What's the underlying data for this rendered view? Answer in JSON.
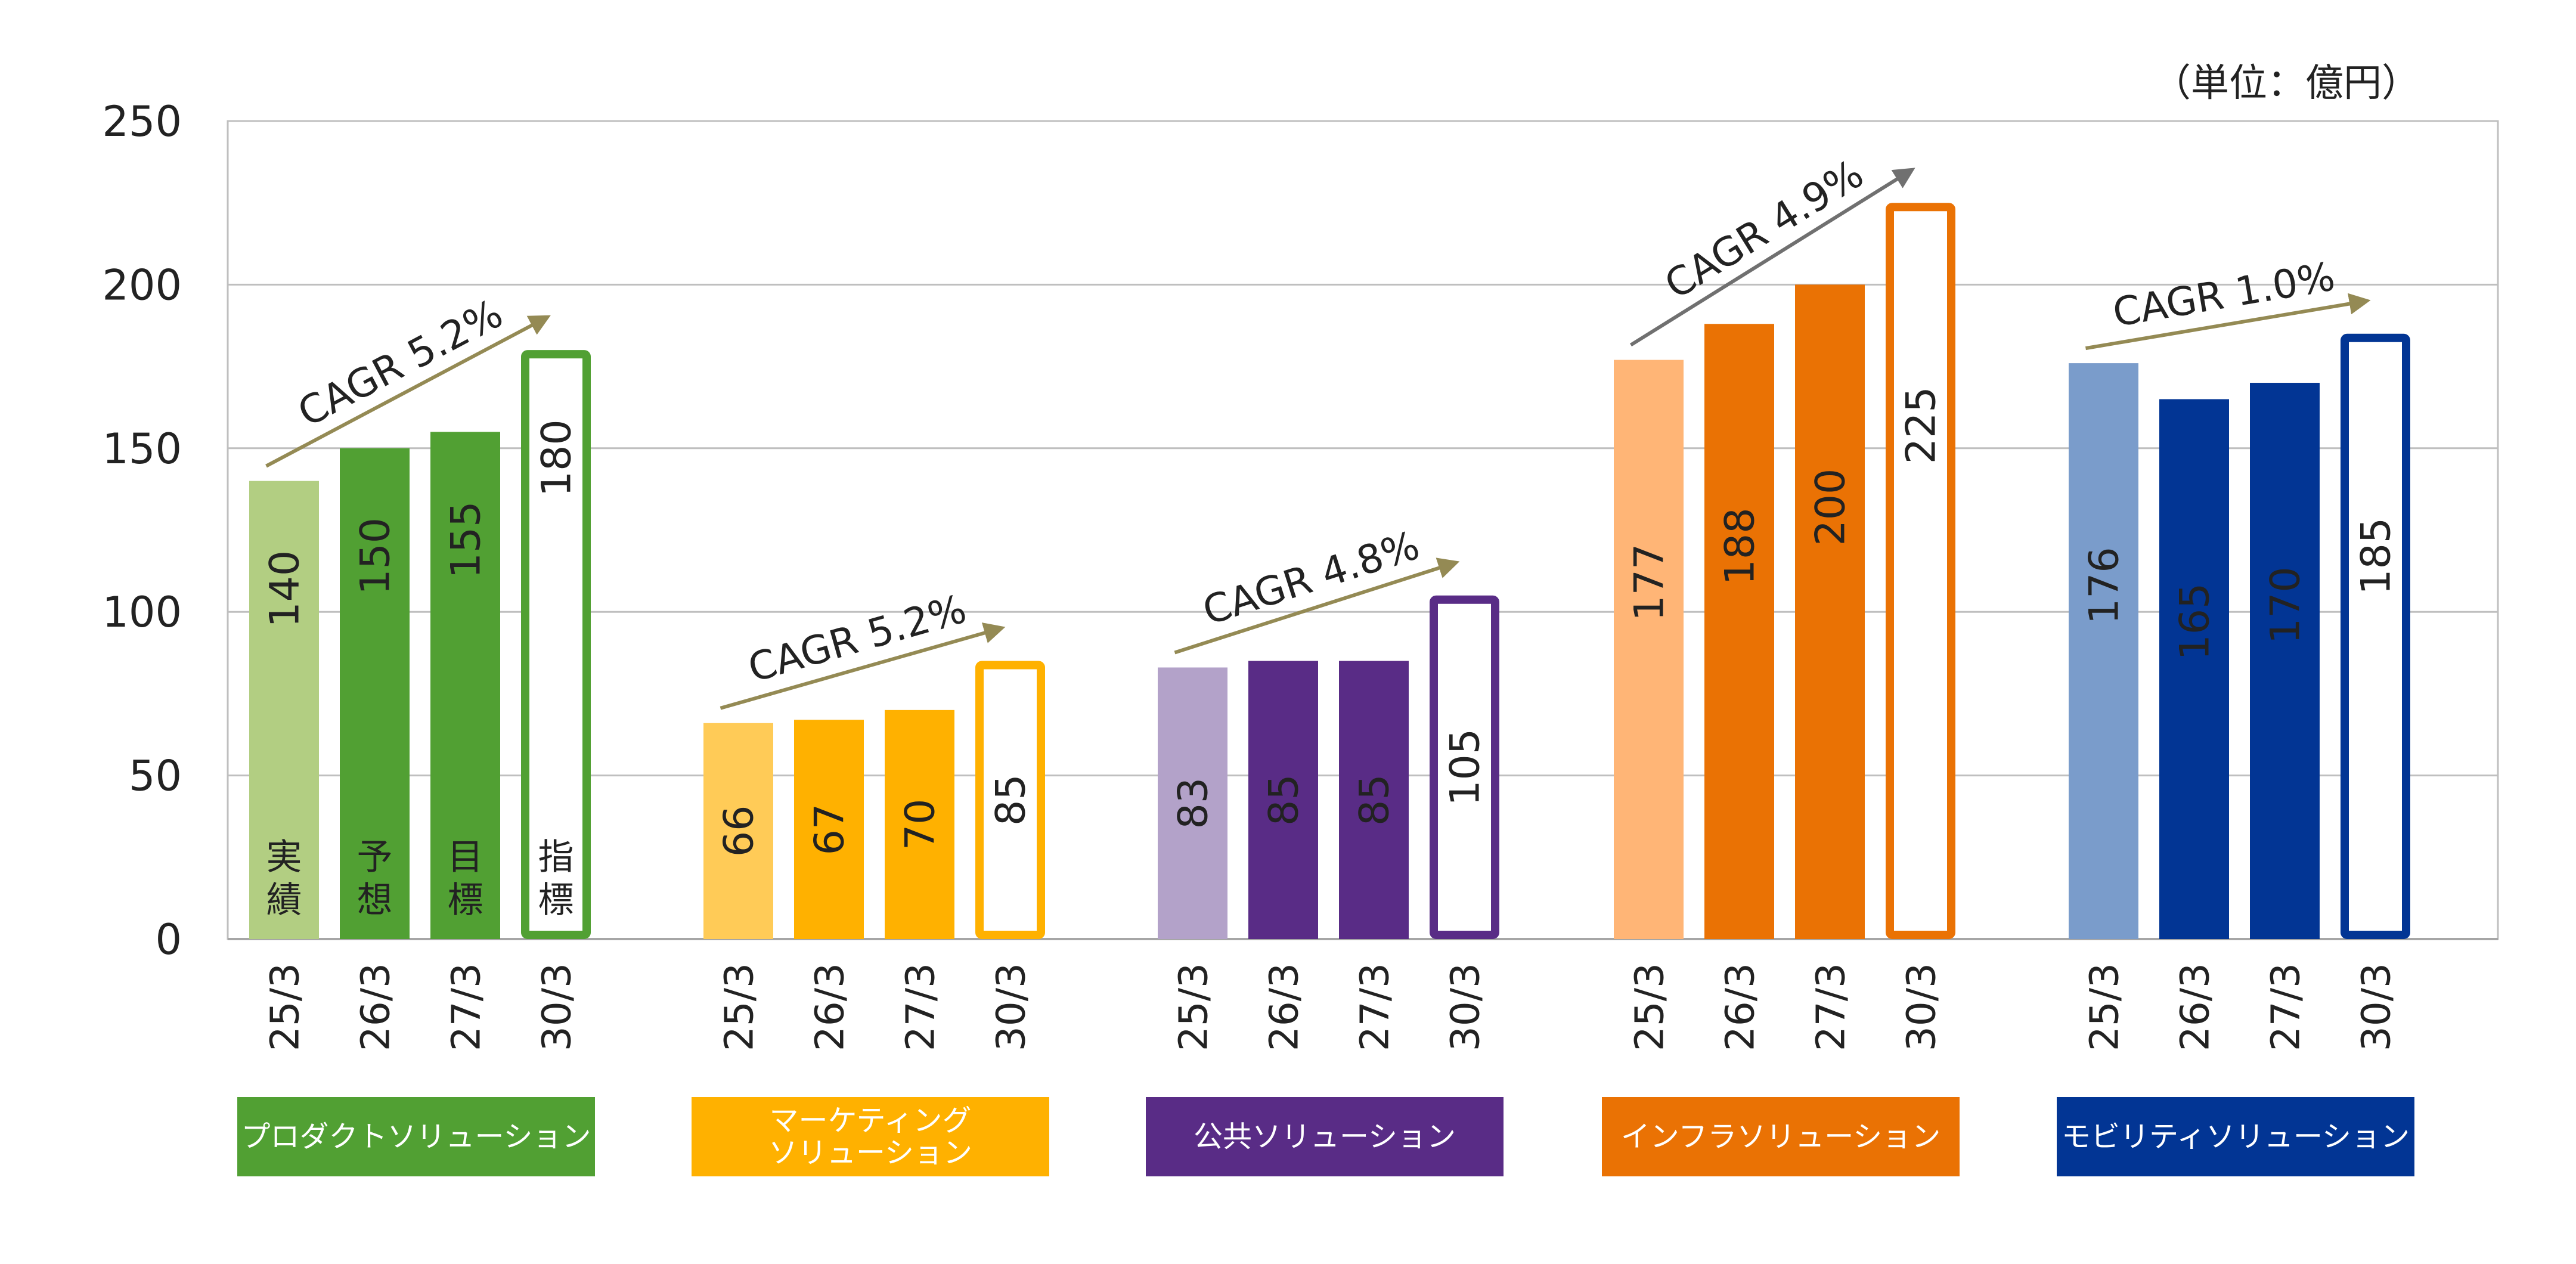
{
  "unit_label": "（単位：億円）",
  "chart_data": {
    "type": "bar",
    "ylim": [
      0,
      250
    ],
    "yticks": [
      0,
      50,
      100,
      150,
      200,
      250
    ],
    "grid": true,
    "categories": [
      "25/3",
      "26/3",
      "27/3",
      "30/3"
    ],
    "bar_notes": [
      "実\n績",
      "予\n想",
      "目\n標",
      "指\n標"
    ],
    "groups": [
      {
        "name": "プロダクトソリューション",
        "badge_color": "#51A033",
        "values": [
          140,
          150,
          155,
          180
        ],
        "colors": [
          "#B2CE82",
          "#51A033",
          "#51A033",
          "#51A033"
        ],
        "label_colors": [
          "#ffffff",
          "#ffffff",
          "#ffffff",
          "#111111"
        ],
        "cagr": "CAGR 5.2%",
        "cagr_color": "#948A54"
      },
      {
        "name": "マーケティング\nソリューション",
        "badge_color": "#FFB100",
        "values": [
          66,
          67,
          70,
          85
        ],
        "colors": [
          "#FFCB57",
          "#FFB100",
          "#FFB100",
          "#FFB100"
        ],
        "label_colors": [
          "#ffffff",
          "#ffffff",
          "#ffffff",
          "#111111"
        ],
        "cagr": "CAGR 5.2%",
        "cagr_color": "#948A54"
      },
      {
        "name": "公共ソリューション",
        "badge_color": "#592C86",
        "values": [
          83,
          85,
          85,
          105
        ],
        "colors": [
          "#B3A2C9",
          "#592C86",
          "#592C86",
          "#592C86"
        ],
        "label_colors": [
          "#ffffff",
          "#ffffff",
          "#ffffff",
          "#111111"
        ],
        "cagr": "CAGR 4.8%",
        "cagr_color": "#948A54"
      },
      {
        "name": "インフラソリューション",
        "badge_color": "#EA7204",
        "values": [
          177,
          188,
          200,
          225
        ],
        "colors": [
          "#FFB576",
          "#EA7204",
          "#EA7204",
          "#EA7204"
        ],
        "label_colors": [
          "#ffffff",
          "#ffffff",
          "#ffffff",
          "#111111"
        ],
        "cagr": "CAGR 4.9%",
        "cagr_color": "#707070"
      },
      {
        "name": "モビリティソリューション",
        "badge_color": "#023594",
        "values": [
          176,
          165,
          170,
          185
        ],
        "colors": [
          "#7A9CCB",
          "#023594",
          "#023594",
          "#023594"
        ],
        "label_colors": [
          "#ffffff",
          "#ffffff",
          "#ffffff",
          "#111111"
        ],
        "cagr": "CAGR 1.0%",
        "cagr_color": "#948A54"
      }
    ]
  }
}
